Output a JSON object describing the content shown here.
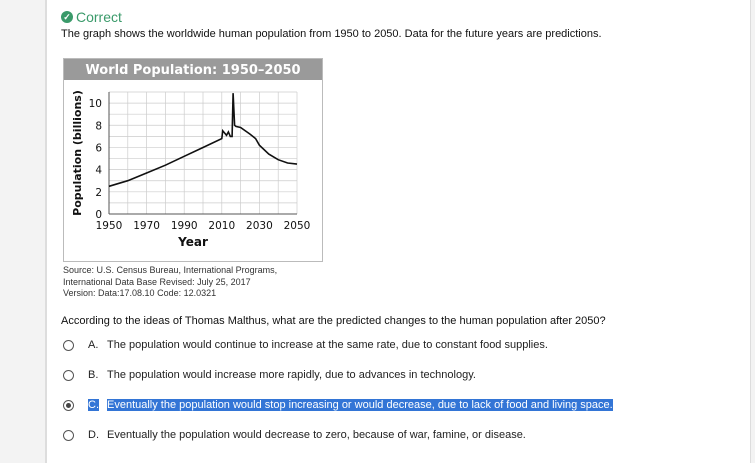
{
  "status": {
    "label": "Correct",
    "icon": "check-circle-icon",
    "color": "#3a9a6a"
  },
  "intro": "The graph shows the worldwide human population from 1950 to 2050. Data for the future years are predictions.",
  "chart_data": {
    "type": "line",
    "title": "World Population: 1950–2050",
    "xlabel": "Year",
    "ylabel": "Population (billions)",
    "xlim": [
      1950,
      2050
    ],
    "ylim": [
      0,
      11
    ],
    "xticks": [
      "1950",
      "1970",
      "1990",
      "2010",
      "2030",
      "2050"
    ],
    "yticks": [
      "0",
      "2",
      "4",
      "6",
      "8",
      "10"
    ],
    "grid": true,
    "x": [
      1950,
      1960,
      1970,
      1980,
      1990,
      2000,
      2010,
      2010.5,
      2011.5,
      2012.5,
      2013.5,
      2014.5,
      2015.5,
      2016,
      2016.8,
      2017.5,
      2020,
      2025,
      2028,
      2030,
      2035,
      2040,
      2045,
      2050
    ],
    "y": [
      2.5,
      3.0,
      3.7,
      4.4,
      5.2,
      6.0,
      6.8,
      7.5,
      7.3,
      7.1,
      7.4,
      7.0,
      7.0,
      10.9,
      8.0,
      7.9,
      7.8,
      7.2,
      6.8,
      6.2,
      5.4,
      4.9,
      4.6,
      4.5
    ]
  },
  "source": [
    "Source: U.S. Census Bureau, International Programs,",
    "International Data Base  Revised: July 25, 2017",
    "Version: Data:17.08.10 Code: 12.0321"
  ],
  "question": "According to the ideas of Thomas Malthus, what are the predicted changes to the human population after 2050?",
  "options": [
    {
      "letter": "A.",
      "text": "The population would continue to increase at the same rate, due to constant food supplies."
    },
    {
      "letter": "B.",
      "text": "The population would increase more rapidly, due to advances in technology."
    },
    {
      "letter": "C.",
      "text": "Eventually the population would stop increasing or would decrease, due to lack of food and living space."
    },
    {
      "letter": "D.",
      "text": "Eventually the population would decrease to zero, because of war, famine, or disease."
    }
  ],
  "selected_option": "C."
}
